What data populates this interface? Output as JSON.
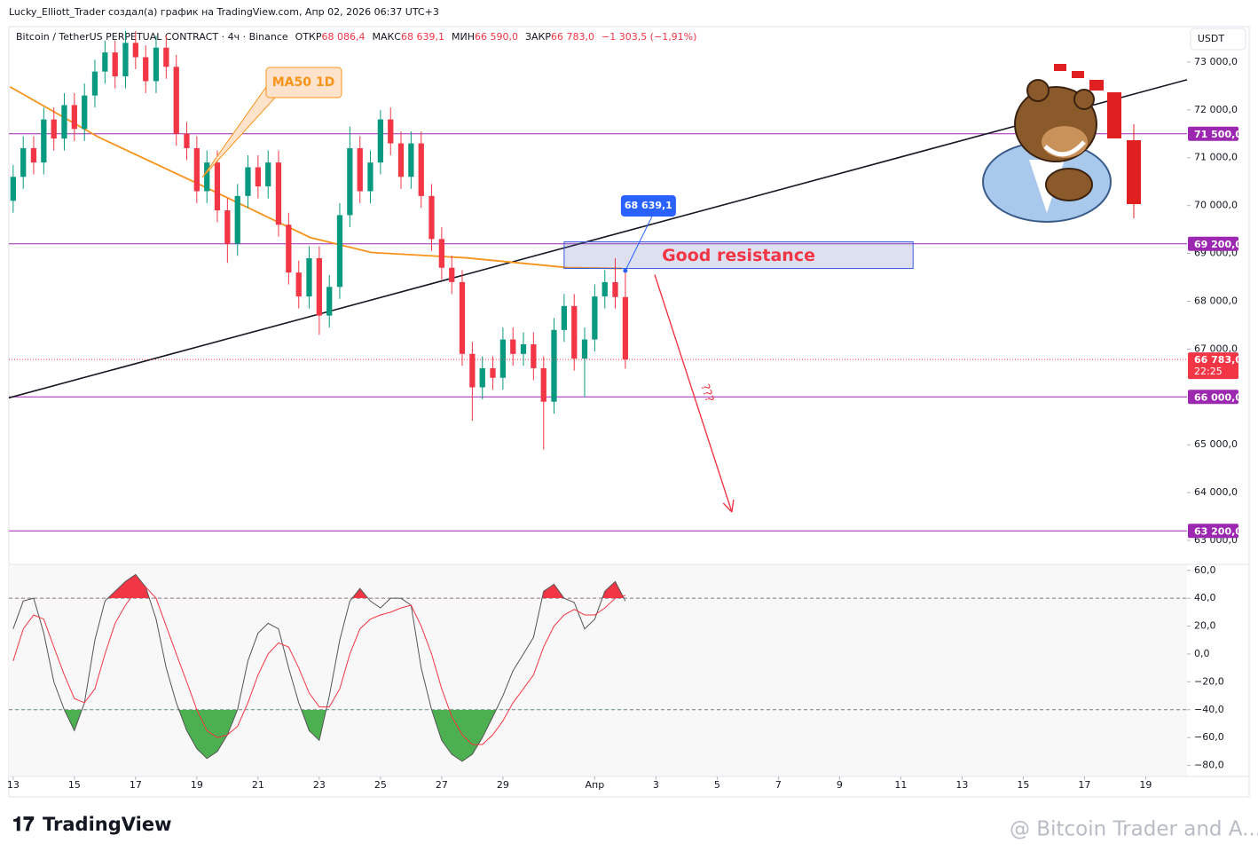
{
  "header": {
    "author_line": "Lucky_Elliott_Trader создал(а) график на TradingView.com, Апр 02, 2026 06:37 UTC+3"
  },
  "footer": {
    "brand": "TradingView",
    "watermark": "@ Bitcoin Trader and A..."
  },
  "chart_data": [
    {
      "type": "candlestick",
      "symbol": "Bitcoin / TetherUS PERPETUAL CONTRACT · 4ч · Binance",
      "ohlc_labels": [
        {
          "name": "ОТКР",
          "value": "68 086,4"
        },
        {
          "name": "МАКС",
          "value": "68 639,1"
        },
        {
          "name": "МИН",
          "value": "66 590,0"
        },
        {
          "name": "ЗАКР",
          "value": "66 783,0"
        }
      ],
      "change": "−1 303,5 (−1,91%)",
      "currency": "USDT",
      "up_color": "#089981",
      "down_color": "#f23645",
      "x": [
        13,
        13.33,
        13.67,
        14,
        14.33,
        14.67,
        15,
        15.33,
        15.67,
        16,
        16.33,
        16.67,
        17,
        17.33,
        17.67,
        18,
        18.33,
        18.67,
        19,
        19.33,
        19.67,
        20,
        20.33,
        20.67,
        21,
        21.33,
        21.67,
        22,
        22.33,
        22.67,
        23,
        23.33,
        23.67,
        24,
        24.33,
        24.67,
        25,
        25.33,
        25.67,
        26,
        26.33,
        26.67,
        27,
        27.33,
        27.67,
        28,
        28.33,
        28.67,
        29,
        29.33,
        29.67,
        30,
        30.33,
        30.67,
        31,
        31.33,
        31.67,
        32,
        32.33,
        32.67,
        33
      ],
      "open": [
        70100,
        70600,
        71200,
        70900,
        71800,
        71400,
        72100,
        71600,
        72300,
        72800,
        73200,
        72700,
        73400,
        73100,
        72600,
        73300,
        72900,
        71500,
        71200,
        70300,
        70900,
        69900,
        69200,
        70200,
        70800,
        70400,
        70900,
        69600,
        68600,
        68100,
        68900,
        67700,
        68300,
        69800,
        71200,
        70300,
        70900,
        71800,
        71300,
        70600,
        71300,
        70200,
        69300,
        68700,
        68400,
        66900,
        66200,
        66600,
        66400,
        67200,
        66900,
        67100,
        66600,
        65900,
        67400,
        67900,
        66800,
        67200,
        68100,
        68400,
        68086.4
      ],
      "high": [
        70850,
        71450,
        71450,
        72050,
        72050,
        72350,
        72350,
        72550,
        73050,
        73450,
        73450,
        73650,
        73650,
        73350,
        73550,
        73550,
        73150,
        71750,
        71450,
        71150,
        71150,
        70150,
        70450,
        71050,
        71050,
        71150,
        71150,
        69850,
        68850,
        69150,
        69150,
        68550,
        70050,
        71650,
        71450,
        71150,
        72000,
        72050,
        71550,
        71550,
        71550,
        70450,
        69550,
        68950,
        68650,
        67150,
        66850,
        66850,
        67450,
        67450,
        67350,
        67350,
        66850,
        67650,
        68150,
        68150,
        67450,
        68350,
        68650,
        68900,
        68639.1
      ],
      "low": [
        69850,
        70350,
        70650,
        70650,
        71150,
        71150,
        71350,
        71350,
        72050,
        72550,
        72450,
        72450,
        72850,
        72350,
        72350,
        72650,
        71250,
        70950,
        70050,
        70050,
        69650,
        68800,
        68950,
        69950,
        70150,
        70150,
        69350,
        68350,
        67850,
        67850,
        67300,
        67450,
        68050,
        69550,
        70050,
        70050,
        70650,
        71050,
        70350,
        70350,
        69950,
        69050,
        68450,
        68150,
        66650,
        65500,
        65950,
        66150,
        66150,
        66650,
        66650,
        66350,
        64900,
        65650,
        67150,
        66550,
        66000,
        66950,
        67850,
        67850,
        66590
      ],
      "close": [
        70600,
        71200,
        70900,
        71800,
        71400,
        72100,
        71600,
        72300,
        72800,
        73200,
        72700,
        73400,
        73100,
        72600,
        73300,
        72900,
        71500,
        71200,
        70300,
        70900,
        69900,
        69200,
        70200,
        70800,
        70400,
        70900,
        69600,
        68600,
        68100,
        68900,
        67700,
        68300,
        69800,
        71200,
        70300,
        70900,
        71800,
        71300,
        70600,
        71300,
        70200,
        69300,
        68700,
        68400,
        66900,
        66200,
        66600,
        66400,
        67200,
        66900,
        67100,
        66600,
        65900,
        67400,
        67900,
        66800,
        67200,
        68100,
        68400,
        68086.4,
        66783
      ],
      "ma": {
        "name": "MA50 1D",
        "color": "#f7931a",
        "x": [
          12.9,
          15.8,
          19.2,
          22.7,
          24.7,
          27.8,
          31.1,
          32.9
        ],
        "values": [
          72481,
          71426,
          70407,
          69333,
          69019,
          68907,
          68704,
          68685
        ]
      },
      "trendline": {
        "color": "#131722",
        "x": [
          12.86,
          51.35
        ],
        "values": [
          65981,
          72630
        ]
      },
      "level_color": "#9c27b0",
      "levels": [
        {
          "value": 71500,
          "label": "71 500,0"
        },
        {
          "value": 69200,
          "label": "69 200,0"
        },
        {
          "value": 66000,
          "label": "66 000,0"
        },
        {
          "value": 63200,
          "label": "63 200,0"
        }
      ],
      "current_price": {
        "value": 66783,
        "label": "66 783,0",
        "timer": "22:25"
      },
      "zone": {
        "x": [
          31.0,
          42.4
        ],
        "values": [
          68685,
          69241
        ],
        "label": "Good resistance"
      },
      "callout": {
        "x": 33,
        "value": 68639.1,
        "label": "68 639,1"
      },
      "arrow": {
        "x": [
          33.96,
          36.48
        ],
        "values": [
          68556,
          63593
        ],
        "label": "???"
      },
      "xlim": [
        12.86,
        51.35
      ],
      "ylim": [
        62500,
        73740
      ],
      "xticks": [
        13,
        15,
        17,
        19,
        21,
        23,
        25,
        27,
        29,
        {
          "value": 32,
          "label": "Апр"
        },
        {
          "value": 34,
          "label": "3"
        },
        {
          "value": 36,
          "label": "5"
        },
        {
          "value": 38,
          "label": "7"
        },
        {
          "value": 40,
          "label": "9"
        },
        {
          "value": 42,
          "label": "11"
        },
        {
          "value": 44,
          "label": "13"
        },
        {
          "value": 46,
          "label": "15"
        },
        {
          "value": 48,
          "label": "17"
        },
        {
          "value": 50,
          "label": "19"
        }
      ],
      "yticks": [
        {
          "value": 73000,
          "label": "73 000,0"
        },
        {
          "value": 72000,
          "label": "72 000,0"
        },
        {
          "value": 71000,
          "label": "71 000,0"
        },
        {
          "value": 70000,
          "label": "70 000,0"
        },
        {
          "value": 69000,
          "label": "69 000,0"
        },
        {
          "value": 68000,
          "label": "68 000,0"
        },
        {
          "value": 67000,
          "label": "67 000,0"
        },
        {
          "value": 65000,
          "label": "65 000,0"
        },
        {
          "value": 64000,
          "label": "64 000,0"
        },
        {
          "value": 63000,
          "label": "63 000,0"
        }
      ]
    },
    {
      "type": "oscillator",
      "x": [
        13,
        13.33,
        13.67,
        14,
        14.33,
        14.67,
        15,
        15.33,
        15.67,
        16,
        16.33,
        16.67,
        17,
        17.33,
        17.67,
        18,
        18.33,
        18.67,
        19,
        19.33,
        19.67,
        20,
        20.33,
        20.67,
        21,
        21.33,
        21.67,
        22,
        22.33,
        22.67,
        23,
        23.33,
        23.67,
        24,
        24.33,
        24.67,
        25,
        25.33,
        25.67,
        26,
        26.33,
        26.67,
        27,
        27.33,
        27.67,
        28,
        28.33,
        28.67,
        29,
        29.33,
        29.67,
        30,
        30.33,
        30.67,
        31,
        31.33,
        31.67,
        32,
        32.33,
        32.67,
        33
      ],
      "series": [
        {
          "color": "#555555",
          "values": [
            18,
            38,
            40,
            15,
            -20,
            -40,
            -55,
            -35,
            10,
            38,
            45,
            52,
            57,
            48,
            25,
            -10,
            -35,
            -55,
            -68,
            -75,
            -70,
            -58,
            -40,
            -5,
            15,
            22,
            18,
            -10,
            -35,
            -55,
            -62,
            -30,
            10,
            38,
            47,
            38,
            33,
            40,
            40,
            35,
            -10,
            -40,
            -62,
            -72,
            -77,
            -72,
            -60,
            -45,
            -30,
            -12,
            0,
            12,
            45,
            50,
            40,
            37,
            18,
            25,
            45,
            52,
            38
          ]
        },
        {
          "color": "#f23645",
          "values": [
            -5,
            18,
            28,
            25,
            5,
            -15,
            -32,
            -35,
            -25,
            0,
            22,
            35,
            45,
            48,
            40,
            20,
            0,
            -20,
            -40,
            -55,
            -60,
            -58,
            -52,
            -35,
            -15,
            0,
            8,
            5,
            -10,
            -28,
            -38,
            -38,
            -25,
            0,
            18,
            25,
            28,
            30,
            33,
            35,
            20,
            0,
            -25,
            -45,
            -58,
            -65,
            -65,
            -58,
            -48,
            -35,
            -25,
            -15,
            5,
            20,
            28,
            32,
            28,
            28,
            33,
            40,
            42
          ]
        }
      ],
      "overbought": 40,
      "oversold": -40,
      "overbought_color": "#f23645",
      "oversold_color": "#4caf50",
      "ylim": [
        -87.9,
        64.3
      ],
      "yticks": [
        {
          "value": 60,
          "label": "60,0"
        },
        {
          "value": 40,
          "label": "40,0"
        },
        {
          "value": 20,
          "label": "20,0"
        },
        {
          "value": 0,
          "label": "0,0"
        },
        {
          "value": -20,
          "label": "−20,0"
        },
        {
          "value": -40,
          "label": "−40,0"
        },
        {
          "value": -60,
          "label": "−60,0"
        },
        {
          "value": -80,
          "label": "−80,0"
        }
      ]
    }
  ]
}
